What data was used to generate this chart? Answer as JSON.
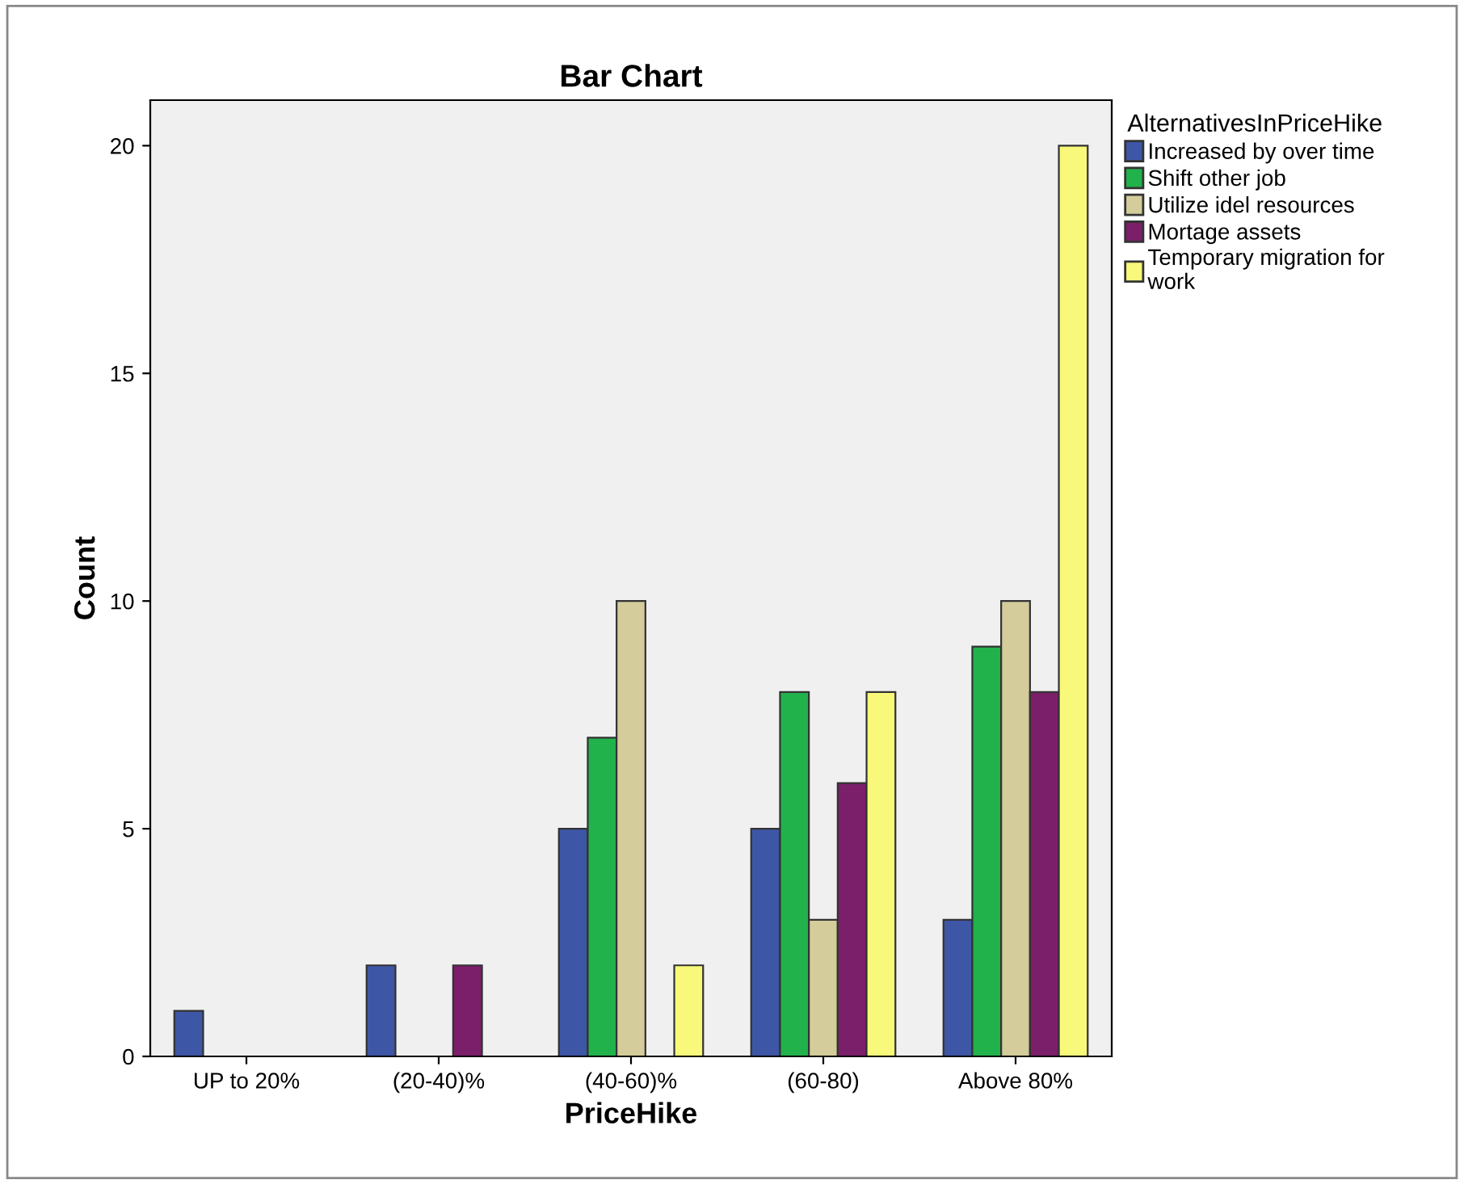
{
  "chart_data": {
    "type": "bar",
    "title": "Bar Chart",
    "xlabel": "PriceHike",
    "ylabel": "Count",
    "legend_title": "AlternativesInPriceHike",
    "categories": [
      "UP to 20%",
      "(20-40)%",
      "(40-60)%",
      "(60-80)",
      "Above 80%"
    ],
    "series": [
      {
        "name": "Increased by over time",
        "color": "#3e56a6",
        "values": [
          1,
          2,
          5,
          5,
          3
        ]
      },
      {
        "name": "Shift other job",
        "color": "#22b24c",
        "values": [
          null,
          null,
          7,
          8,
          9
        ]
      },
      {
        "name": "Utilize idel resources",
        "color": "#d4cc9a",
        "values": [
          null,
          null,
          10,
          3,
          10
        ]
      },
      {
        "name": "Mortage assets",
        "color": "#7b1f6a",
        "values": [
          null,
          2,
          null,
          6,
          8
        ]
      },
      {
        "name": "Temporary migration for\nwork",
        "color": "#f8f87a",
        "values": [
          null,
          null,
          2,
          8,
          20
        ]
      }
    ],
    "ylim": [
      0,
      21
    ],
    "yticks": [
      0,
      5,
      10,
      15,
      20
    ],
    "grid": false,
    "legend": "right"
  }
}
